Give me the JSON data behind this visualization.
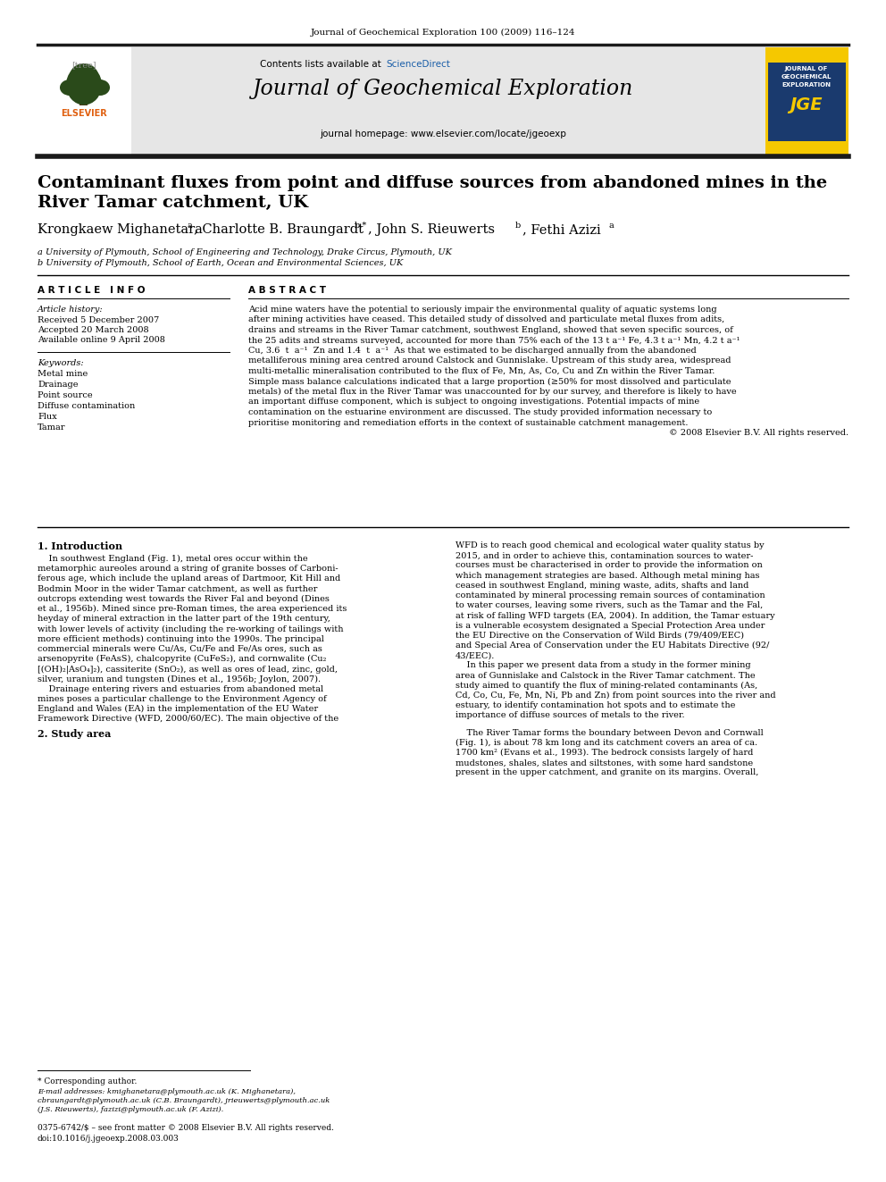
{
  "journal_citation": "Journal of Geochemical Exploration 100 (2009) 116–124",
  "contents_text": "Contents lists available at",
  "sciencedirect_text": "ScienceDirect",
  "journal_title": "Journal of Geochemical Exploration",
  "journal_homepage": "journal homepage: www.elsevier.com/locate/jgeoexp",
  "paper_title": "Contaminant fluxes from point and diffuse sources from abandoned mines in the\nRiver Tamar catchment, UK",
  "authors_plain": "Krongkaew Mighanetara",
  "authors_super_a1": "a",
  "authors_cb": ", Charlotte B. Braungardt",
  "authors_super_b1": "b,*",
  "authors_js": ", John S. Rieuwerts",
  "authors_super_b2": "b",
  "authors_fa": ", Fethi Azizi",
  "authors_super_a2": "a",
  "affil_a": "a University of Plymouth, School of Engineering and Technology, Drake Circus, Plymouth, UK",
  "affil_b": "b University of Plymouth, School of Earth, Ocean and Environmental Sciences, UK",
  "article_info_title": "ARTICLE INFO",
  "article_history_label": "Article history:",
  "received": "Received 5 December 2007",
  "accepted": "Accepted 20 March 2008",
  "available": "Available online 9 April 2008",
  "keywords_label": "Keywords:",
  "keywords": [
    "Metal mine",
    "Drainage",
    "Point source",
    "Diffuse contamination",
    "Flux",
    "Tamar"
  ],
  "abstract_title": "ABSTRACT",
  "abstract_lines": [
    "Acid mine waters have the potential to seriously impair the environmental quality of aquatic systems long",
    "after mining activities have ceased. This detailed study of dissolved and particulate metal fluxes from adits,",
    "drains and streams in the River Tamar catchment, southwest England, showed that seven specific sources, of",
    "the 25 adits and streams surveyed, accounted for more than 75% each of the 13 t a⁻¹ Fe, 4.3 t a⁻¹ Mn, 4.2 t a⁻¹",
    "Cu, 3.6  t  a⁻¹  Zn and 1.4  t  a⁻¹  As that we estimated to be discharged annually from the abandoned",
    "metalliferous mining area centred around Calstock and Gunnislake. Upstream of this study area, widespread",
    "multi-metallic mineralisation contributed to the flux of Fe, Mn, As, Co, Cu and Zn within the River Tamar.",
    "Simple mass balance calculations indicated that a large proportion (≥50% for most dissolved and particulate",
    "metals) of the metal flux in the River Tamar was unaccounted for by our survey, and therefore is likely to have",
    "an important diffuse component, which is subject to ongoing investigations. Potential impacts of mine",
    "contamination on the estuarine environment are discussed. The study provided information necessary to",
    "prioritise monitoring and remediation efforts in the context of sustainable catchment management.",
    "© 2008 Elsevier B.V. All rights reserved."
  ],
  "section1_title": "1. Introduction",
  "s1c1_lines": [
    "    In southwest England (Fig. 1), metal ores occur within the",
    "metamorphic aureoles around a string of granite bosses of Carboni-",
    "ferous age, which include the upland areas of Dartmoor, Kit Hill and",
    "Bodmin Moor in the wider Tamar catchment, as well as further",
    "outcrops extending west towards the River Fal and beyond (Dines",
    "et al., 1956b). Mined since pre-Roman times, the area experienced its",
    "heyday of mineral extraction in the latter part of the 19th century,",
    "with lower levels of activity (including the re-working of tailings with",
    "more efficient methods) continuing into the 1990s. The principal",
    "commercial minerals were Cu/As, Cu/Fe and Fe/As ores, such as",
    "arsenopyrite (FeAsS), chalcopyrite (CuFeS₂), and cornwalite (Cu₂",
    "[(OH)₂|AsO₄]₂), cassiterite (SnO₂), as well as ores of lead, zinc, gold,",
    "silver, uranium and tungsten (Dines et al., 1956b; Joylon, 2007).",
    "    Drainage entering rivers and estuaries from abandoned metal",
    "mines poses a particular challenge to the Environment Agency of",
    "England and Wales (EA) in the implementation of the EU Water",
    "Framework Directive (WFD, 2000/60/EC). The main objective of the"
  ],
  "s1c2_lines": [
    "WFD is to reach good chemical and ecological water quality status by",
    "2015, and in order to achieve this, contamination sources to water-",
    "courses must be characterised in order to provide the information on",
    "which management strategies are based. Although metal mining has",
    "ceased in southwest England, mining waste, adits, shafts and land",
    "contaminated by mineral processing remain sources of contamination",
    "to water courses, leaving some rivers, such as the Tamar and the Fal,",
    "at risk of falling WFD targets (EA, 2004). In addition, the Tamar estuary",
    "is a vulnerable ecosystem designated a Special Protection Area under",
    "the EU Directive on the Conservation of Wild Birds (79/409/EEC)",
    "and Special Area of Conservation under the EU Habitats Directive (92/",
    "43/EEC).",
    "    In this paper we present data from a study in the former mining",
    "area of Gunnislake and Calstock in the River Tamar catchment. The",
    "study aimed to quantify the flux of mining-related contaminants (As,",
    "Cd, Co, Cu, Fe, Mn, Ni, Pb and Zn) from point sources into the river and",
    "estuary, to identify contamination hot spots and to estimate the",
    "importance of diffuse sources of metals to the river."
  ],
  "section2_title": "2. Study area",
  "s2c2_lines": [
    "    The River Tamar forms the boundary between Devon and Cornwall",
    "(Fig. 1), is about 78 km long and its catchment covers an area of ca.",
    "1700 km² (Evans et al., 1993). The bedrock consists largely of hard",
    "mudstones, shales, slates and siltstones, with some hard sandstone",
    "present in the upper catchment, and granite on its margins. Overall,"
  ],
  "footnote_star": "* Corresponding author.",
  "footnote_emails": "E-mail addresses: kmighanetara@plymouth.ac.uk (K. Mighanetara),",
  "footnote_emails2": "cbraungardt@plymouth.ac.uk (C.B. Braungardt), jrieuwerts@plymouth.ac.uk",
  "footnote_emails3": "(J.S. Rieuwerts), fazizi@plymouth.ac.uk (F. Azizi).",
  "footer_issn": "0375-6742/$ – see front matter © 2008 Elsevier B.V. All rights reserved.",
  "footer_doi": "doi:10.1016/j.jgeoexp.2008.03.003",
  "bg_header_color": "#e6e6e6",
  "sciencedirect_color": "#1a5ea8",
  "elsevier_orange": "#e06010",
  "jge_yellow": "#f5c800",
  "jge_navy": "#1a3a6e",
  "header_bar_color": "#1a1a1a"
}
